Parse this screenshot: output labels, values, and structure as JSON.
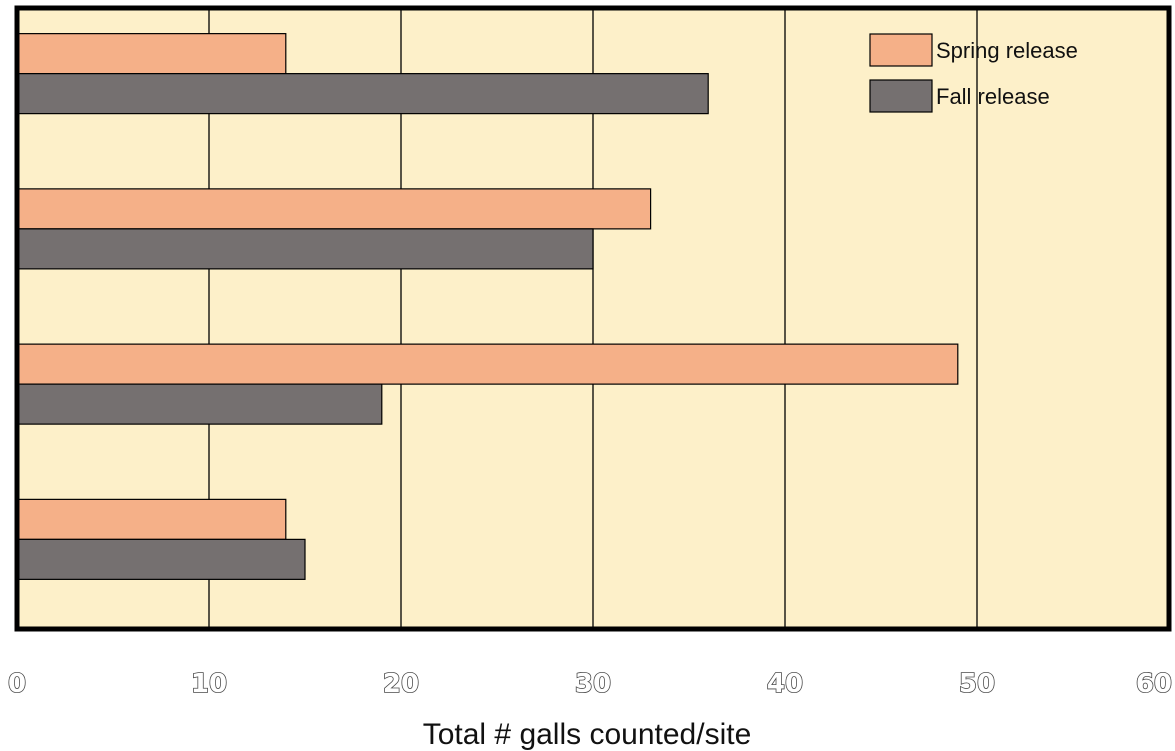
{
  "chart_data": {
    "type": "bar",
    "orientation": "horizontal",
    "title": "",
    "xlabel": "Total # galls counted/site",
    "ylabel": "",
    "xlim": [
      0,
      60
    ],
    "x_ticks": [
      0,
      10,
      20,
      30,
      40,
      50,
      60
    ],
    "x_tick_labels": [
      "0",
      "10",
      "20",
      "30",
      "40",
      "50",
      "60"
    ],
    "grid": "vertical",
    "legend_position": "top-right",
    "categories": [
      "",
      "",
      "",
      ""
    ],
    "series": [
      {
        "name": "Spring release",
        "color": "#f5b088",
        "values": [
          14,
          33,
          49,
          14
        ]
      },
      {
        "name": "Fall release",
        "color": "#757070",
        "values": [
          36,
          30,
          19,
          15
        ]
      }
    ],
    "background_color": "#fdf0c9"
  }
}
